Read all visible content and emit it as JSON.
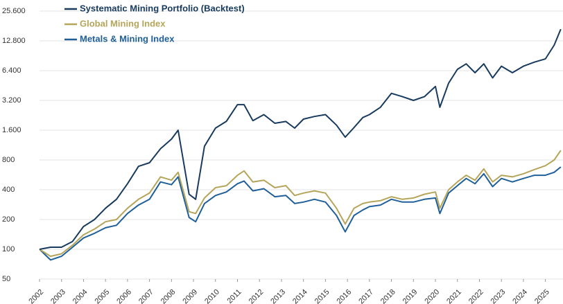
{
  "chart_data": {
    "type": "line",
    "x": [
      2002,
      2002.5,
      2003,
      2003.5,
      2004,
      2004.5,
      2005,
      2005.5,
      2006,
      2006.5,
      2007,
      2007.5,
      2008,
      2008.3,
      2008.8,
      2009.1,
      2009.5,
      2010,
      2010.5,
      2011,
      2011.3,
      2011.7,
      2012.2,
      2012.7,
      2013.2,
      2013.6,
      2014,
      2014.5,
      2015,
      2015.5,
      2015.9,
      2016.3,
      2016.7,
      2017,
      2017.5,
      2018,
      2018.5,
      2019,
      2019.5,
      2020,
      2020.2,
      2020.6,
      2021,
      2021.4,
      2021.8,
      2022.2,
      2022.6,
      2023,
      2023.5,
      2024,
      2024.5,
      2025,
      2025.4,
      2025.7
    ],
    "series": [
      {
        "name": "Systematic Mining Portfolio (Backtest)",
        "color": "#173a5e",
        "values": [
          100,
          105,
          105,
          120,
          170,
          200,
          260,
          320,
          460,
          690,
          750,
          1040,
          1300,
          1600,
          360,
          320,
          1100,
          1680,
          1970,
          2900,
          2900,
          2000,
          2300,
          1880,
          1960,
          1680,
          2070,
          2200,
          2300,
          1800,
          1360,
          1700,
          2150,
          2300,
          2730,
          3770,
          3490,
          3200,
          3490,
          4430,
          2730,
          4780,
          6600,
          7500,
          6100,
          7500,
          5400,
          7100,
          6100,
          7100,
          7800,
          8400,
          11600,
          16800
        ]
      },
      {
        "name": "Global Mining Index",
        "color": "#b5a55a",
        "values": [
          100,
          85,
          90,
          110,
          140,
          160,
          190,
          200,
          260,
          320,
          370,
          540,
          500,
          600,
          240,
          230,
          330,
          420,
          440,
          560,
          620,
          480,
          500,
          420,
          440,
          350,
          370,
          390,
          370,
          260,
          180,
          260,
          290,
          300,
          310,
          340,
          320,
          330,
          360,
          380,
          260,
          400,
          480,
          560,
          500,
          650,
          480,
          560,
          540,
          580,
          640,
          700,
          800,
          1000
        ]
      },
      {
        "name": "Metals & Mining Index",
        "color": "#1f5f99",
        "values": [
          100,
          78,
          85,
          105,
          130,
          145,
          165,
          175,
          230,
          280,
          320,
          480,
          450,
          540,
          210,
          190,
          290,
          350,
          380,
          460,
          490,
          390,
          410,
          340,
          350,
          290,
          300,
          320,
          300,
          220,
          150,
          220,
          250,
          270,
          280,
          320,
          300,
          300,
          320,
          330,
          230,
          370,
          440,
          520,
          460,
          580,
          430,
          520,
          480,
          520,
          560,
          560,
          600,
          680
        ]
      }
    ],
    "xlim": [
      2002,
      2025.8
    ],
    "xticks": [
      2002,
      2003,
      2004,
      2005,
      2006,
      2007,
      2008,
      2009,
      2010,
      2011,
      2012,
      2013,
      2014,
      2015,
      2016,
      2017,
      2018,
      2019,
      2020,
      2021,
      2022,
      2023,
      2024,
      2025
    ],
    "ylim": [
      50,
      25600
    ],
    "yticks": [
      50,
      100,
      200,
      400,
      800,
      {
        "value": 1600,
        "label": "1.600"
      },
      {
        "value": 3200,
        "label": "3.200"
      },
      {
        "value": 6400,
        "label": "6.400"
      },
      {
        "value": 12800,
        "label": "12.800"
      },
      {
        "value": 25600,
        "label": "25.600"
      }
    ],
    "ylog": true,
    "grid": true,
    "legend": "upper left"
  }
}
